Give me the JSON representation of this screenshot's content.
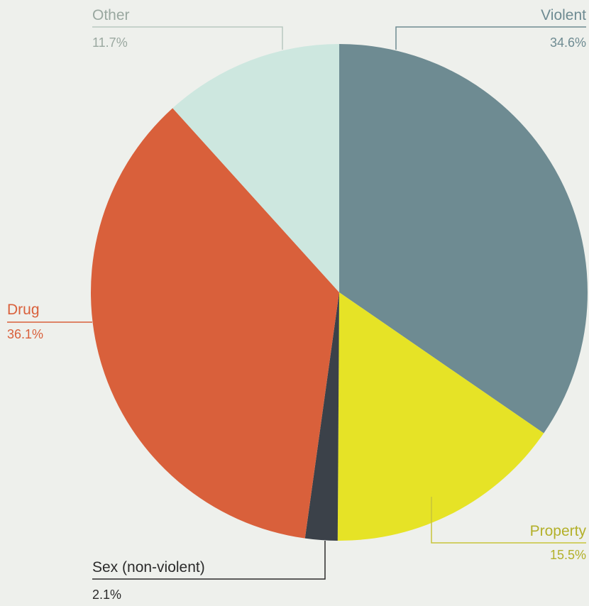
{
  "chart_data": {
    "type": "pie",
    "start_angle_deg": 0,
    "direction": "clockwise",
    "slices": [
      {
        "name": "Violent",
        "value": 34.6,
        "label": "34.6%",
        "color": "#6e8b92"
      },
      {
        "name": "Property",
        "value": 15.5,
        "label": "15.5%",
        "color": "#e6e326"
      },
      {
        "name": "Sex (non-violent)",
        "value": 2.1,
        "label": "2.1%",
        "color": "#3b4149",
        "label_color": "#2b2b2b"
      },
      {
        "name": "Drug",
        "value": 36.1,
        "label": "36.1%",
        "color": "#d9603b"
      },
      {
        "name": "Other",
        "value": 11.7,
        "label": "11.7%",
        "color": "#cde7df",
        "label_color": "#9aa8a0"
      }
    ],
    "legend": "none"
  }
}
